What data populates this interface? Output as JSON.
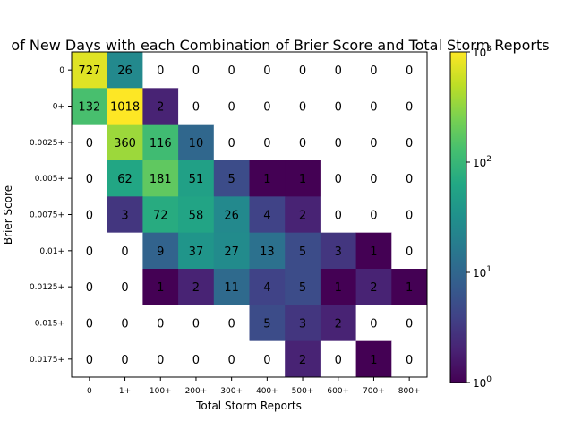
{
  "chart_data": {
    "type": "heatmap",
    "title": "of New Days with each Combination of Brier Score and Total Storm Reports",
    "xlabel": "Total Storm Reports",
    "ylabel": "Brier Score",
    "x_categories": [
      "0",
      "1+",
      "100+",
      "200+",
      "300+",
      "400+",
      "500+",
      "600+",
      "700+",
      "800+"
    ],
    "y_categories": [
      "0",
      "0+",
      "0.0025+",
      "0.005+",
      "0.0075+",
      "0.01+",
      "0.0125+",
      "0.015+",
      "0.0175+"
    ],
    "values": [
      [
        727,
        26,
        0,
        0,
        0,
        0,
        0,
        0,
        0,
        0
      ],
      [
        132,
        1018,
        2,
        0,
        0,
        0,
        0,
        0,
        0,
        0
      ],
      [
        0,
        360,
        116,
        10,
        0,
        0,
        0,
        0,
        0,
        0
      ],
      [
        0,
        62,
        181,
        51,
        5,
        1,
        1,
        0,
        0,
        0
      ],
      [
        0,
        3,
        72,
        58,
        26,
        4,
        2,
        0,
        0,
        0
      ],
      [
        0,
        0,
        9,
        37,
        27,
        13,
        5,
        3,
        1,
        0
      ],
      [
        0,
        0,
        1,
        2,
        11,
        4,
        5,
        1,
        2,
        1
      ],
      [
        0,
        0,
        0,
        0,
        0,
        5,
        3,
        2,
        0,
        0
      ],
      [
        0,
        0,
        0,
        0,
        0,
        0,
        2,
        0,
        1,
        0
      ]
    ],
    "colorscale": "viridis",
    "color_scale_type": "log",
    "color_range": [
      1,
      1000
    ],
    "colorbar_ticks": [
      {
        "base": "10",
        "exp": "0",
        "value": 1
      },
      {
        "base": "10",
        "exp": "1",
        "value": 10
      },
      {
        "base": "10",
        "exp": "2",
        "value": 100
      },
      {
        "base": "10",
        "exp": "3",
        "value": 1000
      }
    ],
    "zero_color": "#ffffff",
    "grid": false
  }
}
